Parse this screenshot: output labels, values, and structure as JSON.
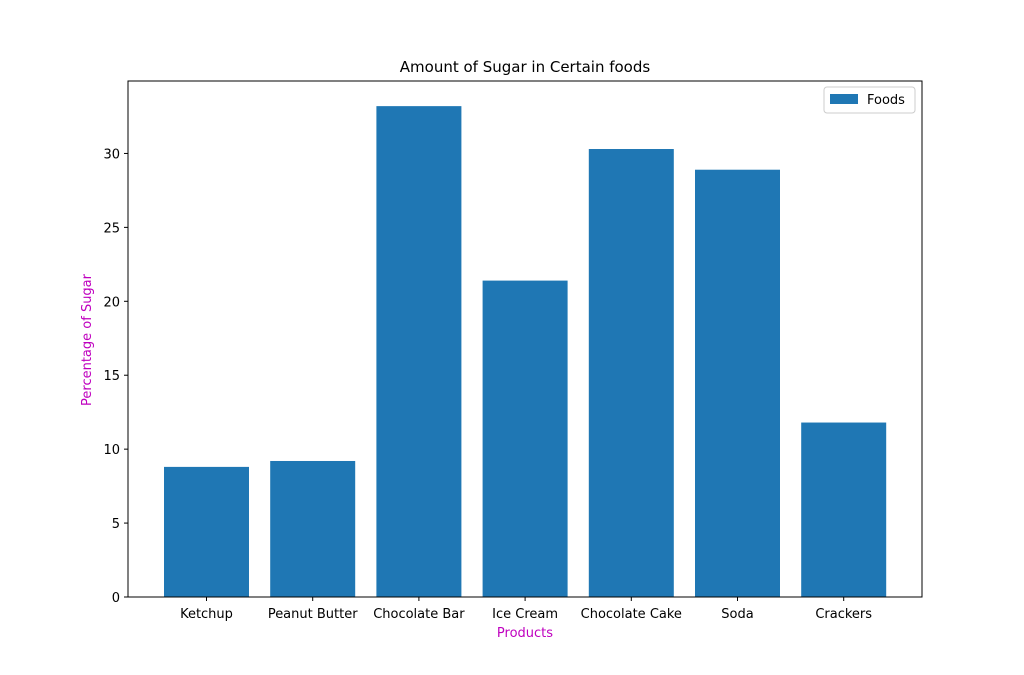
{
  "chart_data": {
    "type": "bar",
    "title": "Amount of Sugar in Certain foods",
    "xlabel": "Products",
    "ylabel": "Percentage of Sugar",
    "categories": [
      "Ketchup",
      "Peanut Butter",
      "Chocolate Bar",
      "Ice Cream",
      "Chocolate Cake",
      "Soda",
      "Crackers"
    ],
    "series": [
      {
        "name": "Foods",
        "values": [
          8.8,
          9.2,
          33.2,
          21.4,
          30.3,
          28.9,
          11.8
        ]
      }
    ],
    "ylim": [
      0,
      34.9
    ],
    "yticks": [
      "0",
      "5",
      "10",
      "15",
      "20",
      "25",
      "30"
    ],
    "grid": false,
    "legend_position": "top-right",
    "colors": {
      "bar": "#1f77b4",
      "axis_label": "#bf00bf",
      "text": "#000000",
      "axes": "#000000",
      "legend_border": "#cccccc"
    }
  }
}
